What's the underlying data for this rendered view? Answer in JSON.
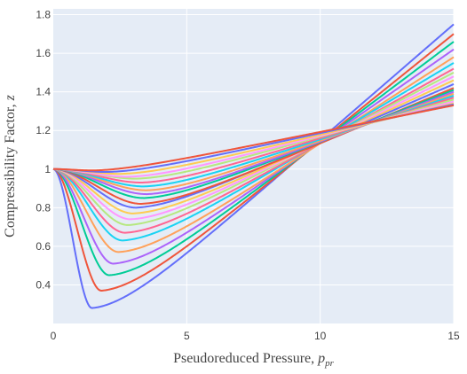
{
  "chart_data": {
    "type": "line",
    "xlabel": "Pseudoreduced Pressure, ",
    "xlabel_var": "p",
    "xlabel_sub": "pr",
    "ylabel": "Compressibility Factor, ",
    "ylabel_var": "z",
    "xlim": [
      0,
      15
    ],
    "ylim": [
      0.2,
      1.83
    ],
    "xticks": [
      0,
      5,
      10,
      15
    ],
    "xtick_labels": [
      "0",
      "5",
      "10",
      "15"
    ],
    "yticks": [
      0.4,
      0.6,
      0.8,
      1.0,
      1.2,
      1.4,
      1.6,
      1.8
    ],
    "ytick_labels": [
      "0.4",
      "0.6",
      "0.8",
      "1",
      "1.2",
      "1.4",
      "1.6",
      "1.8"
    ],
    "grid": true,
    "legend": "none",
    "plot_background": "#e5ecf6",
    "grid_color": "#ffffff",
    "colors": [
      "#636efa",
      "#ef553b",
      "#00cc96",
      "#ab63fa",
      "#ffa15a",
      "#19d3f3",
      "#ff6692",
      "#b6e880",
      "#ff97ff",
      "#fecb52"
    ],
    "series": [
      {
        "min": [
          1.45,
          0.28
        ],
        "end": 1.75
      },
      {
        "min": [
          1.8,
          0.37
        ],
        "end": 1.7
      },
      {
        "min": [
          2.1,
          0.45
        ],
        "end": 1.66
      },
      {
        "min": [
          2.25,
          0.51
        ],
        "end": 1.62
      },
      {
        "min": [
          2.45,
          0.57
        ],
        "end": 1.58
      },
      {
        "min": [
          2.6,
          0.63
        ],
        "end": 1.55
      },
      {
        "min": [
          2.7,
          0.67
        ],
        "end": 1.52
      },
      {
        "min": [
          2.8,
          0.71
        ],
        "end": 1.5
      },
      {
        "min": [
          2.9,
          0.74
        ],
        "end": 1.48
      },
      {
        "min": [
          3.0,
          0.77
        ],
        "end": 1.46
      },
      {
        "min": [
          3.1,
          0.8
        ],
        "end": 1.44
      },
      {
        "min": [
          3.3,
          0.82
        ],
        "end": 1.42
      },
      {
        "min": [
          3.4,
          0.85
        ],
        "end": 1.41
      },
      {
        "min": [
          3.5,
          0.87
        ],
        "end": 1.4
      },
      {
        "min": [
          3.5,
          0.89
        ],
        "end": 1.39
      },
      {
        "min": [
          3.4,
          0.91
        ],
        "end": 1.38
      },
      {
        "min": [
          3.3,
          0.93
        ],
        "end": 1.37
      },
      {
        "min": [
          3.1,
          0.95
        ],
        "end": 1.36
      },
      {
        "min": [
          2.8,
          0.96
        ],
        "end": 1.35
      },
      {
        "min": [
          2.5,
          0.975
        ],
        "end": 1.34
      },
      {
        "min": [
          2.0,
          0.985
        ],
        "end": 1.335
      },
      {
        "min": [
          1.5,
          0.993
        ],
        "end": 1.33
      }
    ]
  }
}
